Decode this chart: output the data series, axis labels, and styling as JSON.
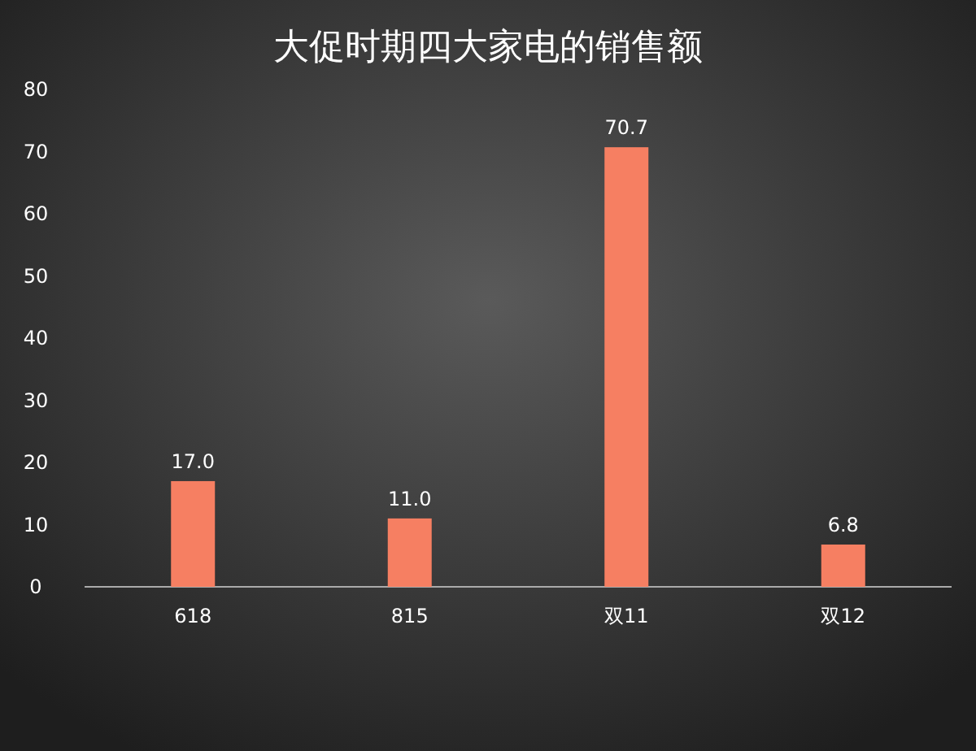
{
  "chart_data": {
    "type": "bar",
    "title": "大促时期四大家电的销售额",
    "categories": [
      "618",
      "815",
      "双11",
      "双12"
    ],
    "values": [
      17.0,
      11.0,
      70.7,
      6.8
    ],
    "color": "#f67f62",
    "ylim": [
      0,
      80
    ],
    "yticks": [
      0,
      10,
      20,
      30,
      40,
      50,
      60,
      70,
      80
    ],
    "value_labels": [
      "17.0",
      "11.0",
      "70.7",
      "6.8"
    ]
  }
}
